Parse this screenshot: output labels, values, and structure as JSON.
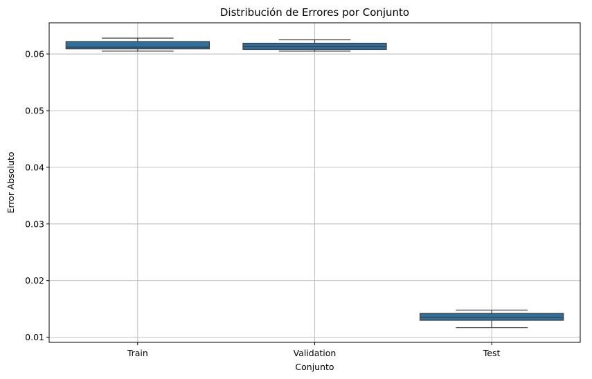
{
  "chart_data": {
    "type": "box",
    "title": "Distribución de Errores por Conjunto",
    "xlabel": "Conjunto",
    "ylabel": "Error Absoluto",
    "categories": [
      "Train",
      "Validation",
      "Test"
    ],
    "ylim": [
      0.0091,
      0.0655
    ],
    "yticks": [
      0.01,
      0.02,
      0.03,
      0.04,
      0.05,
      0.06
    ],
    "ytick_labels": [
      "0.01",
      "0.02",
      "0.03",
      "0.04",
      "0.05",
      "0.06"
    ],
    "grid": true,
    "box_color": "#2e6f9e",
    "series": [
      {
        "category": "Train",
        "whisker_low": 0.0605,
        "q1": 0.0609,
        "median": 0.0612,
        "q3": 0.0622,
        "whisker_high": 0.0628
      },
      {
        "category": "Validation",
        "whisker_low": 0.0605,
        "q1": 0.0608,
        "median": 0.0613,
        "q3": 0.0619,
        "whisker_high": 0.0625
      },
      {
        "category": "Test",
        "whisker_low": 0.0117,
        "q1": 0.013,
        "median": 0.0135,
        "q3": 0.0142,
        "whisker_high": 0.0148
      }
    ]
  }
}
